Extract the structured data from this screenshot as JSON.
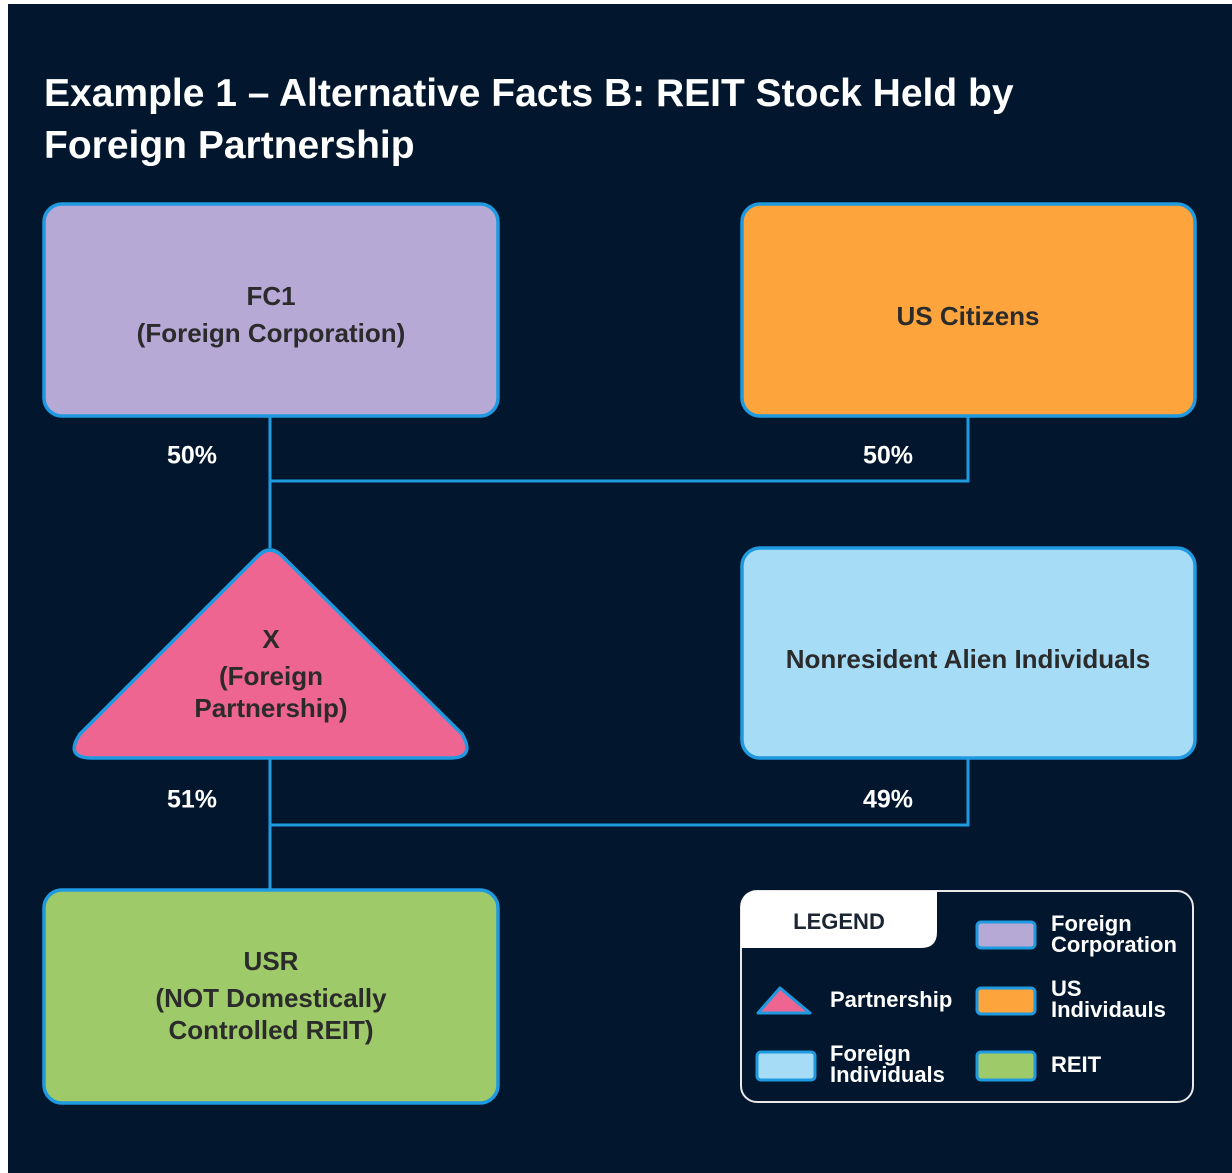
{
  "title": [
    "Example 1 – Alternative Facts B: REIT Stock Held by",
    "Foreign Partnership"
  ],
  "nodes": [
    {
      "id": "fc1",
      "label": [
        "FC1",
        "(Foreign Corporation)"
      ]
    },
    {
      "id": "us",
      "label": [
        "US Citizens"
      ]
    },
    {
      "id": "x",
      "label": [
        "X",
        "(Foreign",
        "Partnership)"
      ]
    },
    {
      "id": "nra",
      "label": [
        "Nonresident Alien Individuals"
      ]
    },
    {
      "id": "usr",
      "label": [
        "USR",
        "(NOT Domestically",
        "Controlled REIT)"
      ]
    }
  ],
  "edges": [
    {
      "from": "fc1",
      "to": "x",
      "label": "50%"
    },
    {
      "from": "us",
      "to": "x",
      "label": "50%"
    },
    {
      "from": "x",
      "to": "usr",
      "label": "51%"
    },
    {
      "from": "nra",
      "to": "usr",
      "label": "49%"
    }
  ],
  "legend": {
    "title": "LEGEND",
    "items": [
      {
        "label": [
          "Foreign",
          "Corporation"
        ]
      },
      {
        "label": [
          "Partnership"
        ]
      },
      {
        "label": [
          "US",
          "Individauls"
        ]
      },
      {
        "label": [
          "Foreign",
          "Individuals"
        ]
      },
      {
        "label": [
          "REIT"
        ]
      }
    ]
  }
}
